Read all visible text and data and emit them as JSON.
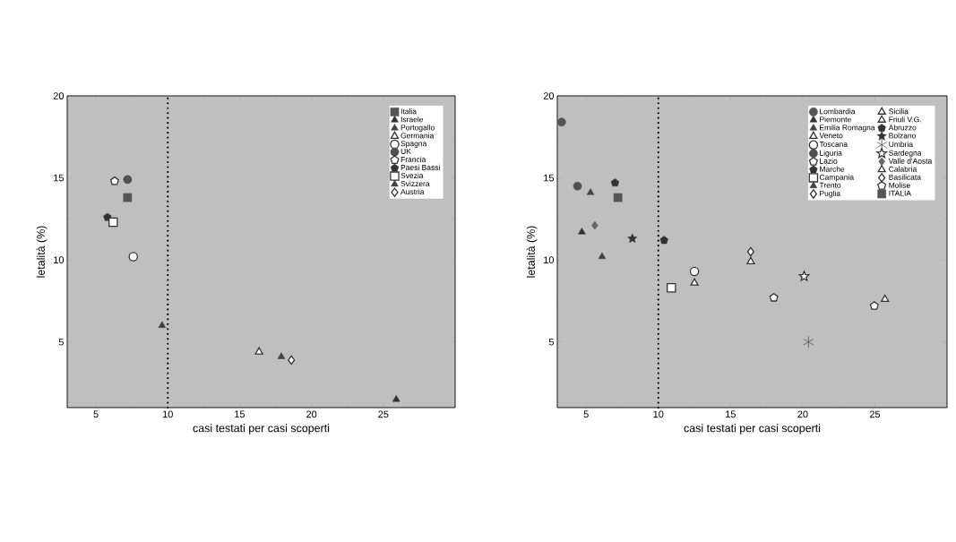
{
  "chart_data": [
    {
      "type": "scatter",
      "xlabel": "casi testati per casi scoperti",
      "ylabel": "letalità (%)",
      "xlim": [
        3,
        30
      ],
      "ylim": [
        1,
        20
      ],
      "xticks": [
        5,
        10,
        15,
        20,
        25
      ],
      "yticks": [
        5,
        10,
        15,
        20
      ],
      "legend": "top right",
      "ref_lines": [
        {
          "axis": "x",
          "value": 10,
          "line_style": "dotted",
          "color": "#000000"
        }
      ],
      "series": [
        {
          "name": "Italia",
          "color": "#555555",
          "marker": "square",
          "x": [
            7.2
          ],
          "values": [
            13.8
          ]
        },
        {
          "name": "Israele",
          "color": "#333333",
          "marker": "triangle",
          "x": [
            25.9
          ],
          "values": [
            1.5
          ]
        },
        {
          "name": "Portogallo",
          "color": "#444444",
          "marker": "triangle",
          "x": [
            17.9
          ],
          "values": [
            4.1
          ]
        },
        {
          "name": "Germania",
          "color": "#ffffff",
          "marker": "triangle",
          "x": [
            16.35
          ],
          "values": [
            4.4
          ]
        },
        {
          "name": "Spagna",
          "color": "#ffffff",
          "marker": "circle",
          "x": [
            7.6
          ],
          "values": [
            10.2
          ]
        },
        {
          "name": "UK",
          "color": "#505050",
          "marker": "circle",
          "x": [
            7.2
          ],
          "values": [
            14.9
          ]
        },
        {
          "name": "Francia",
          "color": "#ffffff",
          "x": [
            6.3
          ],
          "values": [
            14.8
          ]
        },
        {
          "name": "Paesi Bassi",
          "color": "#333333",
          "x": [
            5.8
          ],
          "values": [
            12.6
          ]
        },
        {
          "name": "Svezia",
          "color": "#ffffff",
          "marker": "square",
          "x": [
            6.2
          ],
          "values": [
            12.3
          ]
        },
        {
          "name": "Svizzera",
          "color": "#404040",
          "marker": "triangle",
          "x": [
            9.6
          ],
          "values": [
            6.0
          ]
        },
        {
          "name": "Austria",
          "color": "#ffffff",
          "marker": "diamond",
          "x": [
            18.6
          ],
          "values": [
            3.9
          ]
        }
      ]
    },
    {
      "type": "scatter",
      "xlabel": "casi testati per casi scoperti",
      "ylabel": "letalità (%)",
      "xlim": [
        3,
        30
      ],
      "ylim": [
        1,
        20
      ],
      "xticks": [
        5,
        10,
        15,
        20,
        25
      ],
      "yticks": [
        5,
        10,
        15,
        20
      ],
      "legend": "top right",
      "ref_lines": [
        {
          "axis": "x",
          "value": 10,
          "line_style": "dotted",
          "color": "#000000"
        }
      ],
      "series": [
        {
          "name": "Lombardia",
          "color": "#555555",
          "marker": "circle",
          "x": [
            3.3
          ],
          "values": [
            18.4
          ]
        },
        {
          "name": "Piemonte",
          "color": "#333333",
          "marker": "triangle",
          "x": [
            4.7
          ],
          "values": [
            11.7
          ]
        },
        {
          "name": "Emilia Romagna",
          "color": "#444444",
          "marker": "triangle",
          "x": [
            5.3
          ],
          "values": [
            14.1
          ]
        },
        {
          "name": "Veneto",
          "color": "#ffffff",
          "marker": "triangle",
          "x": [
            12.5
          ],
          "values": [
            8.6
          ]
        },
        {
          "name": "Toscana",
          "color": "#ffffff",
          "marker": "circle",
          "x": [
            12.5
          ],
          "values": [
            9.3
          ]
        },
        {
          "name": "Liguria",
          "color": "#505050",
          "marker": "circle",
          "x": [
            4.4
          ],
          "values": [
            14.5
          ]
        },
        {
          "name": "Lazio",
          "color": "#ffffff",
          "x": [
            18.0
          ],
          "values": [
            7.7
          ]
        },
        {
          "name": "Marche",
          "color": "#333333",
          "x": [
            7.0
          ],
          "values": [
            14.7
          ]
        },
        {
          "name": "Campania",
          "color": "#ffffff",
          "marker": "square",
          "x": [
            10.9
          ],
          "values": [
            8.3
          ]
        },
        {
          "name": "Trento",
          "color": "#404040",
          "marker": "triangle",
          "x": [
            6.1
          ],
          "values": [
            10.2
          ]
        },
        {
          "name": "Puglia",
          "color": "#ffffff",
          "marker": "diamond",
          "x": [
            16.4
          ],
          "values": [
            10.5
          ]
        },
        {
          "name": "Sicilia",
          "color": "#ffffff",
          "marker": "triangle",
          "x": [
            25.7
          ],
          "values": [
            7.6
          ]
        },
        {
          "name": "Friuli V.G.",
          "color": "#ffffff",
          "marker": "triangle",
          "x": [
            16.4
          ],
          "values": [
            9.9
          ]
        },
        {
          "name": "Abruzzo",
          "color": "#333333",
          "x": [
            10.4
          ],
          "values": [
            11.2
          ]
        },
        {
          "name": "Bolzano",
          "color": "#333333",
          "marker": "star",
          "x": [
            8.2
          ],
          "values": [
            11.3
          ]
        },
        {
          "name": "Umbria",
          "color": "#555555",
          "marker": "cross",
          "x": [
            20.4
          ],
          "values": [
            5.0
          ]
        },
        {
          "name": "Sardegna",
          "color": "#ffffff",
          "marker": "star",
          "x": [
            20.1
          ],
          "values": [
            9.0
          ]
        },
        {
          "name": "Valle d'Aosta",
          "color": "#666666",
          "marker": "diamond",
          "x": [
            5.6
          ],
          "values": [
            12.1
          ]
        },
        {
          "name": "Calabria",
          "color": "#ffffff",
          "marker": "triangle",
          "x": [
            null
          ],
          "values": [
            null
          ]
        },
        {
          "name": "Basilicata",
          "color": "#ffffff",
          "marker": "diamond",
          "x": [
            null
          ],
          "values": [
            null
          ]
        },
        {
          "name": "Molise",
          "color": "#ffffff",
          "x": [
            24.96
          ],
          "values": [
            7.2
          ]
        },
        {
          "name": "ITALIA",
          "color": "#555555",
          "marker": "square",
          "x": [
            7.2
          ],
          "values": [
            13.8
          ]
        }
      ]
    }
  ]
}
